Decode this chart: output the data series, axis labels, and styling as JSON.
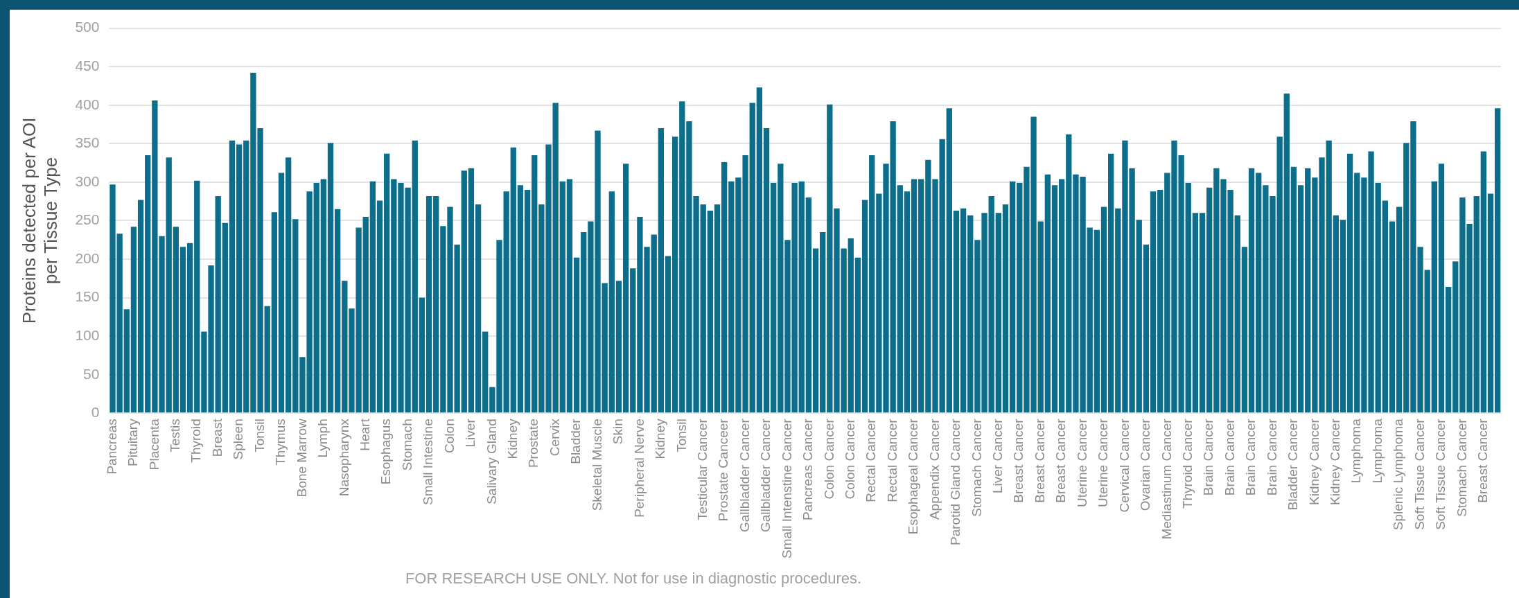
{
  "chart_data": {
    "type": "bar",
    "ylabel": "Proteins detected per AOI per Tissue Type",
    "categories": [
      "Pancreas",
      null,
      null,
      "Pituitary",
      null,
      null,
      "Placenta",
      null,
      null,
      "Testis",
      null,
      null,
      "Thyroid",
      null,
      null,
      "Breast",
      null,
      null,
      "Spleen",
      null,
      null,
      "Tonsil",
      null,
      null,
      "Thymus",
      null,
      null,
      "Bone Marrow",
      null,
      null,
      "Lymph",
      null,
      null,
      "Nasopharynx",
      null,
      null,
      "Heart",
      null,
      null,
      "Esophagus",
      null,
      null,
      "Stomach",
      null,
      null,
      "Small Intestine",
      null,
      null,
      "Colon",
      null,
      null,
      "Liver",
      null,
      null,
      "Salivary Gland",
      null,
      null,
      "Kidney",
      null,
      null,
      "Prostate",
      null,
      null,
      "Cervix",
      null,
      null,
      "Bladder",
      null,
      null,
      "Skeletal Muscle",
      null,
      null,
      "Skin",
      null,
      null,
      "Peripheral Nerve",
      null,
      null,
      "Kidney",
      null,
      null,
      "Tonsil",
      null,
      null,
      "Testicular Cancer",
      null,
      null,
      "Prostate Canceer",
      null,
      null,
      "Gallbladder Cancer",
      null,
      null,
      "Gallbladder Cancer",
      null,
      null,
      "Small Intenstine Cancer",
      null,
      null,
      "Pancreas Cancer",
      null,
      null,
      "Colon Cancer",
      null,
      null,
      "Colon Cancer",
      null,
      null,
      "Rectal Cancer",
      null,
      null,
      "Rectal Cancer",
      null,
      null,
      "Esophageal Cancer",
      null,
      null,
      "Appendix Cancer",
      null,
      null,
      "Parotid Gland Cancer",
      null,
      null,
      "Stomach Cancer",
      null,
      null,
      "Liver Cancer",
      null,
      null,
      "Breast Cancer",
      null,
      null,
      "Breast Cancer",
      null,
      null,
      "Breast Cancer",
      null,
      null,
      "Uterine Cancer",
      null,
      null,
      "Uterine Cancer",
      null,
      null,
      "Cervical Cancer",
      null,
      null,
      "Ovarian Cancer",
      null,
      null,
      "Mediastinum Cancer",
      null,
      null,
      "Thyroid Cancer",
      null,
      null,
      "Brain Cancer",
      null,
      null,
      "Brain Cancer",
      null,
      null,
      "Brain Cancer",
      null,
      null,
      "Brain Cancer",
      null,
      null,
      "Bladder Cancer",
      null,
      null,
      "Kidney Cancer",
      null,
      null,
      "Kidney Cancer",
      null,
      null,
      "Lymphoma",
      null,
      null,
      "Lymphoma",
      null,
      null,
      "Splenic Lymphoma",
      null,
      null,
      "Soft Tissue Cancer",
      null,
      null,
      "Soft Tissue Cancer",
      null,
      null,
      "Stomach Cancer",
      null,
      null,
      "Breast Cancer",
      null,
      null
    ],
    "values": [
      297,
      233,
      135,
      242,
      277,
      335,
      406,
      230,
      332,
      242,
      216,
      221,
      302,
      106,
      192,
      282,
      247,
      354,
      349,
      354,
      442,
      370,
      139,
      261,
      312,
      332,
      252,
      73,
      288,
      299,
      304,
      351,
      265,
      172,
      136,
      241,
      255,
      301,
      276,
      337,
      304,
      299,
      293,
      354,
      150,
      282,
      282,
      243,
      268,
      219,
      315,
      318,
      271,
      106,
      34,
      225,
      288,
      345,
      296,
      290,
      335,
      271,
      349,
      403,
      301,
      304,
      202,
      235,
      249,
      367,
      169,
      288,
      172,
      324,
      188,
      255,
      216,
      232,
      370,
      204,
      359,
      405,
      379,
      282,
      271,
      263,
      271,
      326,
      301,
      306,
      335,
      403,
      423,
      370,
      299,
      324,
      225,
      299,
      301,
      280,
      214,
      235,
      401,
      266,
      214,
      227,
      202,
      277,
      335,
      285,
      324,
      379,
      296,
      288,
      304,
      304,
      329,
      304,
      356,
      396,
      263,
      266,
      257,
      225,
      260,
      282,
      260,
      271,
      301,
      299,
      320,
      385,
      249,
      310,
      296,
      304,
      362,
      310,
      307,
      241,
      238,
      268,
      337,
      266,
      354,
      318,
      251,
      219,
      288,
      290,
      312,
      354,
      335,
      299,
      260,
      260,
      293,
      318,
      304,
      290,
      257,
      216,
      318,
      312,
      296,
      282,
      359,
      415,
      320,
      296,
      318,
      306,
      332,
      354,
      257,
      251,
      337,
      312,
      306,
      340,
      299,
      276,
      249,
      268,
      351,
      379,
      216,
      186,
      301,
      324,
      164,
      197,
      280,
      246,
      282,
      340,
      285,
      396
    ],
    "color": "#0d6e8c",
    "ylim": [
      0,
      500
    ],
    "yticks": [
      0,
      50,
      100,
      150,
      200,
      250,
      300,
      350,
      400,
      450,
      500
    ],
    "grid": "y",
    "annotations": [
      "FOR RESEARCH USE ONLY. Not for use in diagnostic procedures."
    ]
  }
}
